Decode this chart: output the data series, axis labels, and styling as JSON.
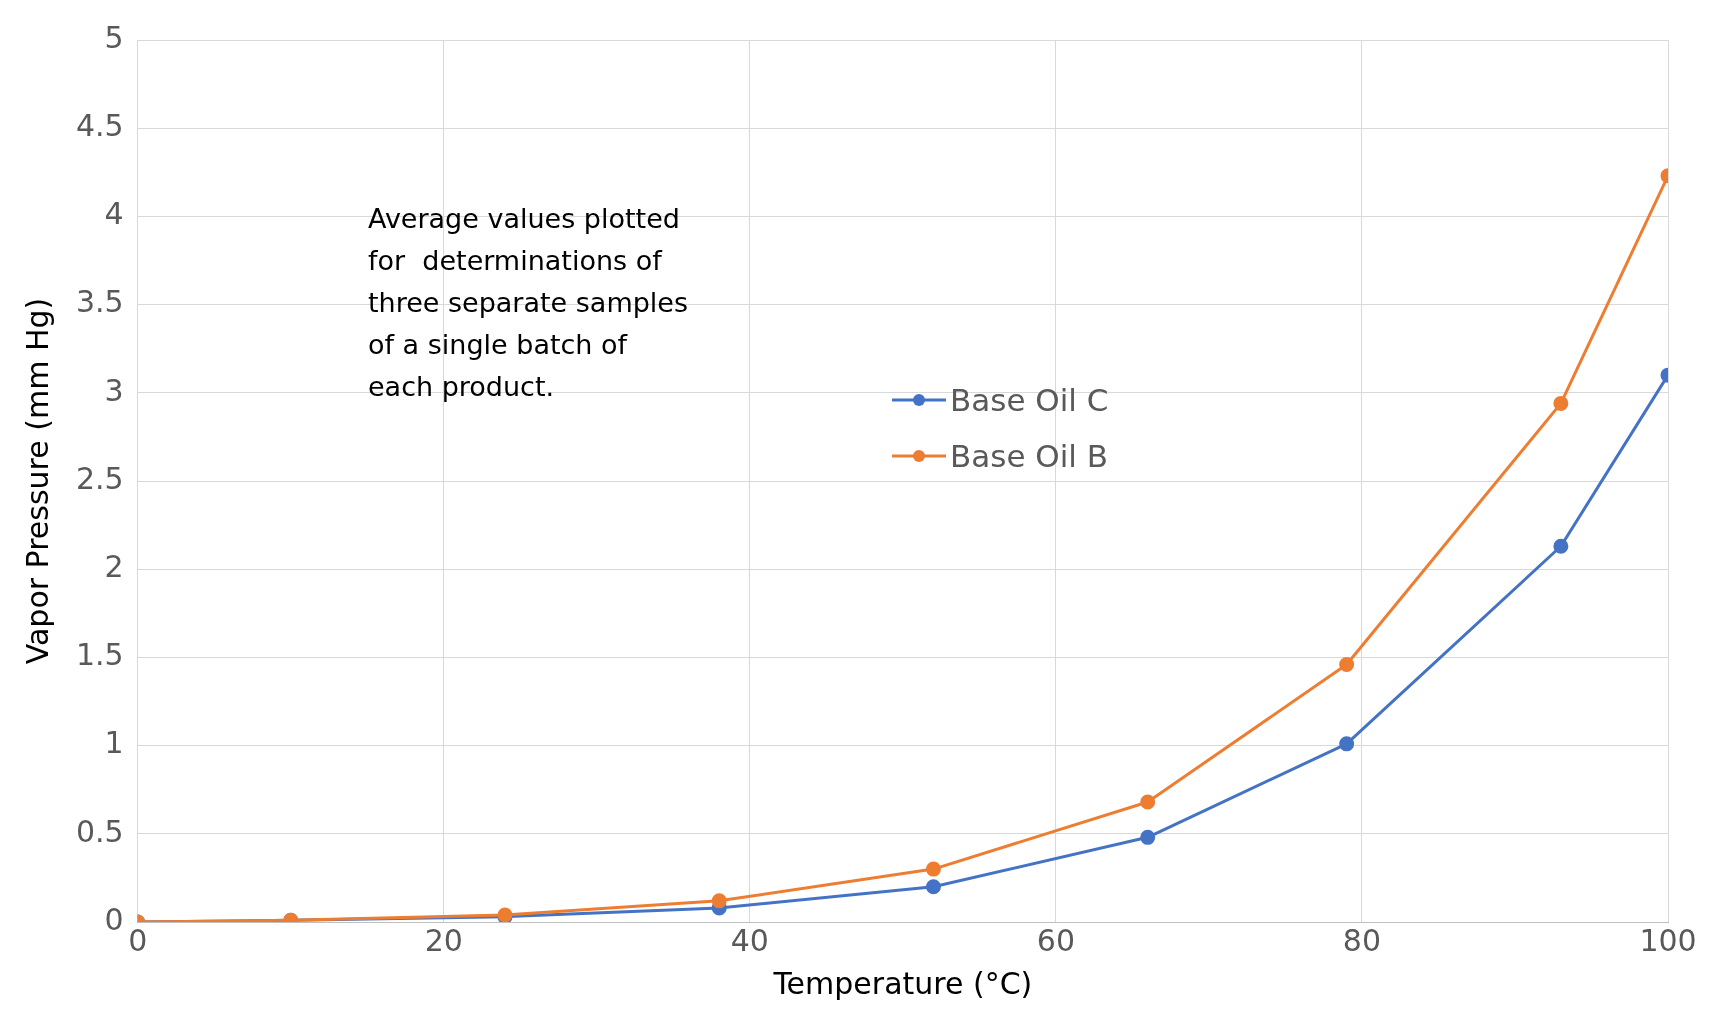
{
  "chart_data": {
    "type": "line",
    "xlabel": "Temperature (°C)",
    "ylabel": "Vapor Pressure (mm Hg)",
    "x": [
      0,
      10,
      24,
      38,
      52,
      66,
      79,
      93,
      100
    ],
    "series": [
      {
        "name": "Base Oil C",
        "color": "#4472c4",
        "values": [
          0,
          0.01,
          0.03,
          0.08,
          0.2,
          0.48,
          1.01,
          2.13,
          3.1
        ]
      },
      {
        "name": "Base Oil B",
        "color": "#ed7d31",
        "values": [
          0,
          0.01,
          0.04,
          0.12,
          0.3,
          0.68,
          1.46,
          2.94,
          4.23
        ]
      }
    ],
    "xlim": [
      0,
      100
    ],
    "xticks": [
      0,
      20,
      40,
      60,
      80,
      100
    ],
    "ylim": [
      0,
      5
    ],
    "yticks": [
      0,
      0.5,
      1,
      1.5,
      2,
      2.5,
      3,
      3.5,
      4,
      4.5,
      5
    ],
    "grid": true,
    "legend": "center",
    "marker": "circle",
    "line_style": "solid",
    "annotations": [
      "Average values plotted\nfor  determinations of\nthree separate samples\nof a single batch of\neach product."
    ]
  }
}
